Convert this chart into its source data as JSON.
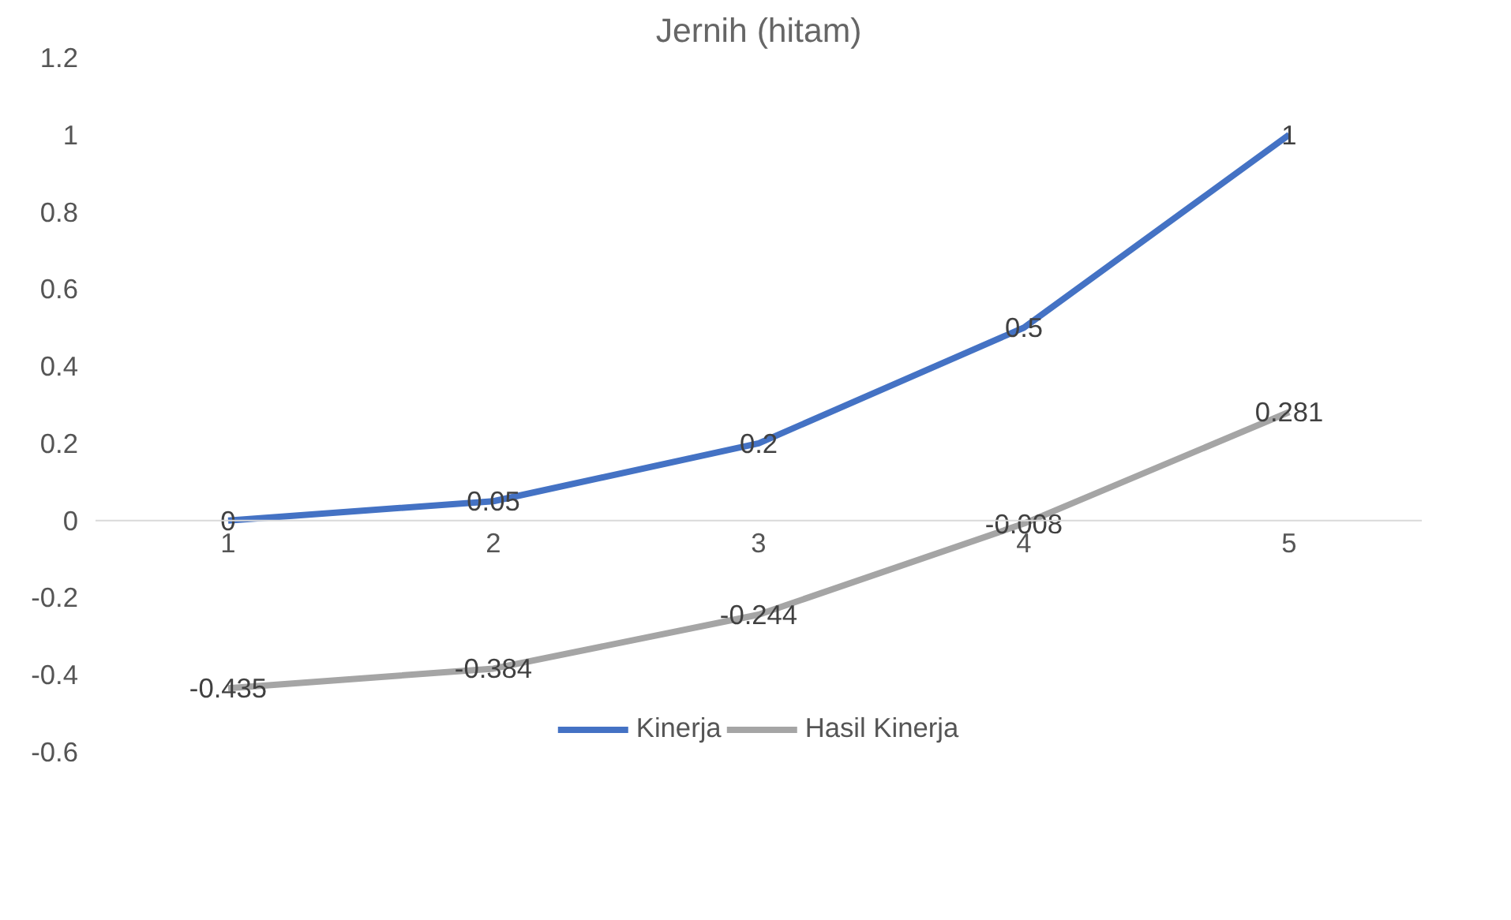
{
  "chart_data": {
    "type": "line",
    "title": "Jernih (hitam)",
    "categories": [
      "1",
      "2",
      "3",
      "4",
      "5"
    ],
    "series": [
      {
        "name": "Kinerja",
        "color": "#4472c4",
        "values": [
          0,
          0.05,
          0.2,
          0.5,
          1
        ]
      },
      {
        "name": "Hasil Kinerja",
        "color": "#a5a5a5",
        "values": [
          -0.435,
          -0.384,
          -0.244,
          -0.008,
          0.281
        ]
      }
    ],
    "ylim": [
      -0.6,
      1.2
    ],
    "yticks": [
      -0.6,
      -0.4,
      -0.2,
      0,
      0.2,
      0.4,
      0.6,
      0.8,
      1,
      1.2
    ],
    "data_labels": true,
    "grid": false,
    "legend": "bottom",
    "marker": "none",
    "line_style": "solid"
  }
}
